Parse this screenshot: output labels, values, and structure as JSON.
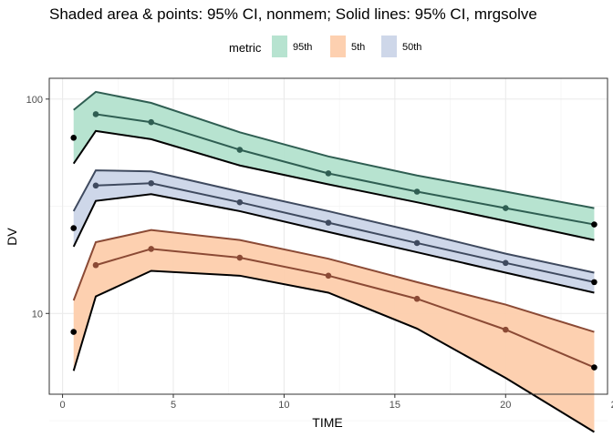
{
  "chart_data": {
    "type": "area",
    "title": "Shaded area & points: 95% CI, nonmem; Solid lines: 95% CI, mrgsolve",
    "xlabel": "TIME",
    "ylabel": "DV",
    "xlim": [
      -0.6,
      24.6
    ],
    "ylim": [
      4.2,
      125
    ],
    "y_scale": "log",
    "x_ticks": [
      0,
      5,
      10,
      15,
      20,
      25
    ],
    "x_tick_labels": [
      "0",
      "5",
      "10",
      "15",
      "20",
      "25"
    ],
    "y_ticks": [
      10,
      100
    ],
    "y_tick_labels": [
      "10",
      "100"
    ],
    "grid": true,
    "legend": {
      "title": "metric",
      "position": "top",
      "entries": [
        "95th",
        "5th",
        "50th"
      ]
    },
    "x": [
      0.5,
      1.5,
      4,
      8,
      12,
      16,
      20,
      24
    ],
    "series": [
      {
        "name": "95th",
        "color": "#1b9e77",
        "fill": "#b3e2cd",
        "line_color": "#2f5e52",
        "lower": [
          50,
          71,
          65,
          49,
          40,
          33,
          27,
          22
        ],
        "upper": [
          89,
          108,
          96,
          70,
          54,
          44,
          37,
          31
        ],
        "points": [
          66,
          85,
          78,
          58,
          45,
          37,
          31,
          26
        ],
        "mrgsolve_lower": [
          50,
          71,
          65,
          49,
          40,
          33,
          27,
          22
        ],
        "mrgsolve_median": [
          null,
          85,
          78,
          58,
          45,
          37,
          31,
          26
        ],
        "mrgsolve_upper": [
          89,
          108,
          96,
          70,
          54,
          44,
          37,
          31
        ]
      },
      {
        "name": "5th",
        "color": "#d95f02",
        "fill": "#fdcdac",
        "line_color": "#8b4a35",
        "lower": [
          5.5,
          12,
          15.8,
          15,
          12.5,
          8.5,
          5,
          2.8
        ],
        "upper": [
          11.5,
          21.5,
          24.5,
          22,
          18,
          14,
          11,
          8.2
        ],
        "points": [
          8.2,
          16.8,
          20,
          18.2,
          15,
          11.7,
          8.4,
          5.6
        ],
        "mrgsolve_lower": [
          5.4,
          12,
          15.8,
          15,
          12.5,
          8.5,
          5,
          2.8
        ],
        "mrgsolve_median": [
          null,
          16.8,
          20,
          18.2,
          15,
          11.7,
          8.4,
          5.6
        ],
        "mrgsolve_upper": [
          11.5,
          21.5,
          24.5,
          22,
          18,
          14,
          11,
          8.2
        ]
      },
      {
        "name": "50th",
        "color": "#7570b3",
        "fill": "#cbd5e8",
        "line_color": "#3f4a5f",
        "lower": [
          20.5,
          33.5,
          36,
          30,
          24,
          19.3,
          15.5,
          12.5
        ],
        "upper": [
          30,
          46.5,
          46,
          37,
          30,
          24,
          19,
          15.5
        ],
        "points": [
          25,
          39.5,
          40.5,
          33,
          26.5,
          21.3,
          17.2,
          14
        ],
        "mrgsolve_lower": [
          20.5,
          33.5,
          36,
          30,
          24,
          19.3,
          15.5,
          12.5
        ],
        "mrgsolve_median": [
          null,
          39.5,
          40.5,
          33,
          26.5,
          21.3,
          17.2,
          14
        ],
        "mrgsolve_upper": [
          30,
          46.5,
          46,
          37,
          30,
          24,
          19,
          15.5
        ]
      }
    ]
  }
}
